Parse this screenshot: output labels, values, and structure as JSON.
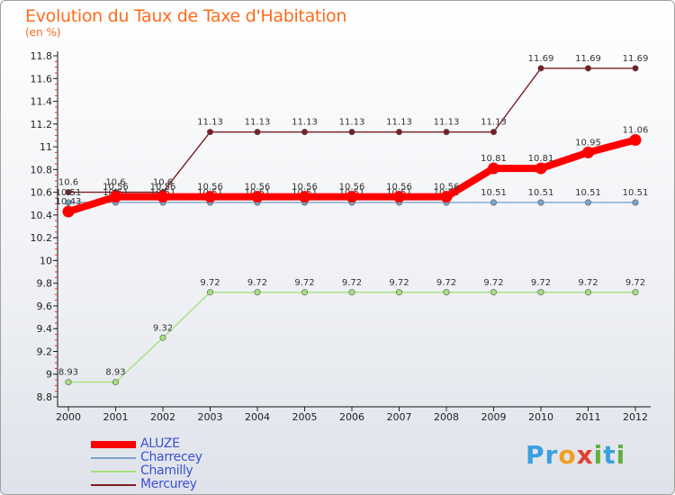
{
  "chart_data": {
    "type": "line",
    "title": "Evolution du Taux de Taxe d'Habitation",
    "subtitle": "(en %)",
    "x": [
      "2000",
      "2001",
      "2002",
      "2003",
      "2004",
      "2005",
      "2006",
      "2007",
      "2008",
      "2009",
      "2010",
      "2011",
      "2012"
    ],
    "ylim": [
      8.8,
      11.8
    ],
    "yticks": [
      "8.8",
      "9",
      "9.2",
      "9.4",
      "9.6",
      "9.8",
      "10",
      "10.2",
      "10.4",
      "10.6",
      "10.8",
      "11",
      "11.2",
      "11.4",
      "11.6",
      "11.8"
    ],
    "grid": false,
    "legend_position": "bottom-left",
    "series": [
      {
        "name": "Mercurey",
        "color": "#7a1f24",
        "values": [
          10.6,
          10.6,
          10.6,
          11.13,
          11.13,
          11.13,
          11.13,
          11.13,
          11.13,
          11.13,
          11.69,
          11.69,
          11.69
        ],
        "labels": [
          "10.6",
          "10.6",
          "10.6",
          "11.13",
          "11.13",
          "11.13",
          "11.13",
          "11.13",
          "11.13",
          "11.13",
          "11.69",
          "11.69",
          "11.69"
        ]
      },
      {
        "name": "Charrecey",
        "color": "#7ba4cc",
        "values": [
          10.51,
          10.51,
          10.51,
          10.51,
          10.51,
          10.51,
          10.51,
          10.51,
          10.51,
          10.51,
          10.51,
          10.51,
          10.51
        ],
        "labels": [
          "10.51",
          "10.51",
          "10.51",
          "10.51",
          "10.51",
          "10.51",
          "10.51",
          "10.51",
          "10.51",
          "10.51",
          "10.51",
          "10.51",
          "10.51"
        ]
      },
      {
        "name": "Chamilly",
        "color": "#a6e07e",
        "values": [
          8.93,
          8.93,
          9.32,
          9.72,
          9.72,
          9.72,
          9.72,
          9.72,
          9.72,
          9.72,
          9.72,
          9.72,
          9.72
        ],
        "labels": [
          "8.93",
          "8.93",
          "9.32",
          "9.72",
          "9.72",
          "9.72",
          "9.72",
          "9.72",
          "9.72",
          "9.72",
          "9.72",
          "9.72",
          "9.72"
        ]
      },
      {
        "name": "ALUZE",
        "color": "#ff0000",
        "values": [
          10.43,
          10.56,
          10.56,
          10.56,
          10.56,
          10.56,
          10.56,
          10.56,
          10.56,
          10.81,
          10.81,
          10.95,
          11.06
        ],
        "labels": [
          "10.43",
          "10.56",
          "10.56",
          "10.56",
          "10.56",
          "10.56",
          "10.56",
          "10.56",
          "10.56",
          "10.81",
          "10.81",
          "10.95",
          "11.06"
        ]
      }
    ]
  },
  "legend": {
    "items": [
      {
        "name": "ALUZE",
        "color": "#ff0000"
      },
      {
        "name": "Charrecey",
        "color": "#7ba4cc"
      },
      {
        "name": "Chamilly",
        "color": "#a6e07e"
      },
      {
        "name": "Mercurey",
        "color": "#7a1f24"
      }
    ]
  },
  "brand": {
    "text": "Proxiti",
    "letters": [
      "P",
      "r",
      "o",
      "x",
      "i",
      "t",
      "i"
    ],
    "colors": [
      "#3aa0e0",
      "#3aa0e0",
      "#f0a020",
      "#e04030",
      "#60b040",
      "#3aa0e0",
      "#60b040"
    ]
  }
}
